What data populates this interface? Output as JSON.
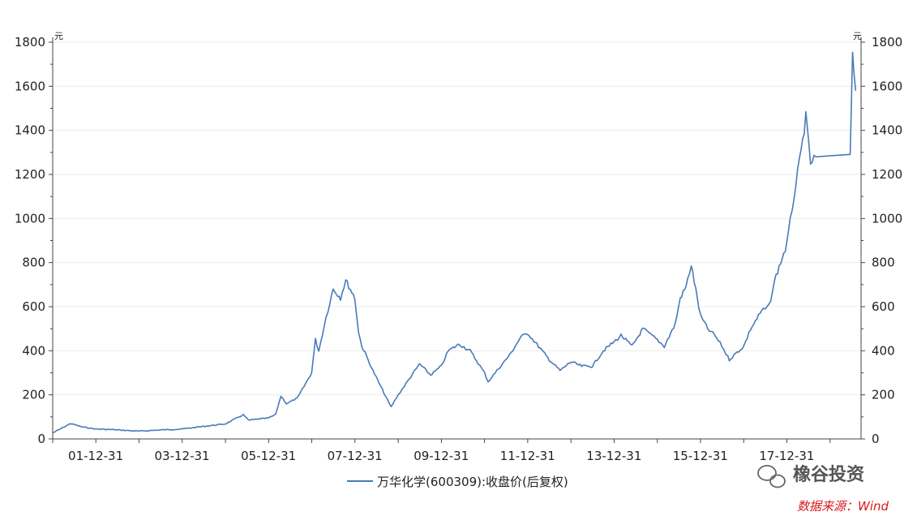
{
  "chart_data": {
    "type": "line",
    "unit_left": "元",
    "unit_right": "元",
    "ylim": [
      0,
      1800
    ],
    "y_ticks": [
      0,
      200,
      400,
      600,
      800,
      1000,
      1200,
      1400,
      1600,
      1800
    ],
    "x_ticks": [
      "01-12-31",
      "03-12-31",
      "05-12-31",
      "07-12-31",
      "09-12-31",
      "11-12-31",
      "13-12-31",
      "15-12-31",
      "17-12-31"
    ],
    "grid": "horizontal",
    "legend_position": "bottom-center",
    "series": [
      {
        "name": "万华化学(600309):收盘价(后复权)",
        "color": "#4a7ab8",
        "points": [
          [
            "2001-01-05",
            28
          ],
          [
            "2001-06-01",
            70
          ],
          [
            "2001-09-01",
            55
          ],
          [
            "2001-12-31",
            45
          ],
          [
            "2002-06-01",
            42
          ],
          [
            "2002-12-31",
            35
          ],
          [
            "2003-06-01",
            40
          ],
          [
            "2003-12-31",
            45
          ],
          [
            "2004-06-01",
            55
          ],
          [
            "2004-12-31",
            68
          ],
          [
            "2005-06-01",
            110
          ],
          [
            "2005-07-15",
            85
          ],
          [
            "2005-12-31",
            95
          ],
          [
            "2006-03-01",
            110
          ],
          [
            "2006-04-15",
            195
          ],
          [
            "2006-06-01",
            160
          ],
          [
            "2006-09-01",
            185
          ],
          [
            "2006-12-31",
            300
          ],
          [
            "2007-02-01",
            450
          ],
          [
            "2007-03-01",
            400
          ],
          [
            "2007-05-01",
            550
          ],
          [
            "2007-07-01",
            680
          ],
          [
            "2007-09-01",
            640
          ],
          [
            "2007-10-15",
            720
          ],
          [
            "2007-12-31",
            640
          ],
          [
            "2008-02-01",
            480
          ],
          [
            "2008-03-01",
            420
          ],
          [
            "2008-06-01",
            310
          ],
          [
            "2008-09-01",
            210
          ],
          [
            "2008-11-01",
            145
          ],
          [
            "2009-01-01",
            200
          ],
          [
            "2009-04-01",
            270
          ],
          [
            "2009-07-01",
            340
          ],
          [
            "2009-10-01",
            290
          ],
          [
            "2009-12-31",
            330
          ],
          [
            "2010-03-01",
            400
          ],
          [
            "2010-06-01",
            430
          ],
          [
            "2010-09-01",
            400
          ],
          [
            "2010-12-31",
            300
          ],
          [
            "2011-02-01",
            260
          ],
          [
            "2011-05-01",
            320
          ],
          [
            "2011-08-01",
            380
          ],
          [
            "2011-11-01",
            460
          ],
          [
            "2012-01-01",
            480
          ],
          [
            "2012-04-01",
            420
          ],
          [
            "2012-07-01",
            360
          ],
          [
            "2012-10-01",
            310
          ],
          [
            "2012-12-31",
            350
          ],
          [
            "2013-04-01",
            330
          ],
          [
            "2013-07-01",
            330
          ],
          [
            "2013-10-01",
            400
          ],
          [
            "2013-12-31",
            440
          ],
          [
            "2014-03-01",
            470
          ],
          [
            "2014-06-01",
            420
          ],
          [
            "2014-09-01",
            500
          ],
          [
            "2014-12-31",
            450
          ],
          [
            "2015-03-01",
            420
          ],
          [
            "2015-06-01",
            520
          ],
          [
            "2015-07-15",
            640
          ],
          [
            "2015-09-01",
            690
          ],
          [
            "2015-10-15",
            790
          ],
          [
            "2015-12-31",
            560
          ],
          [
            "2016-03-01",
            500
          ],
          [
            "2016-05-01",
            470
          ],
          [
            "2016-07-01",
            420
          ],
          [
            "2016-09-01",
            360
          ],
          [
            "2016-12-31",
            420
          ],
          [
            "2017-03-01",
            500
          ],
          [
            "2017-06-01",
            580
          ],
          [
            "2017-08-01",
            600
          ],
          [
            "2017-10-01",
            740
          ],
          [
            "2017-12-31",
            880
          ],
          [
            "2018-03-01",
            1100
          ],
          [
            "2018-05-01",
            1300
          ],
          [
            "2018-06-10",
            1460
          ],
          [
            "2018-07-20",
            1250
          ],
          [
            "2018-09-01",
            1280
          ],
          [
            "2019-06-20",
            1280
          ],
          [
            "2019-07-10",
            1730
          ],
          [
            "2019-08-05",
            1580
          ]
        ]
      }
    ]
  },
  "watermark": {
    "text": "橡谷投资",
    "icon": "wechat-icon"
  },
  "source_note": "数据来源：Wind"
}
